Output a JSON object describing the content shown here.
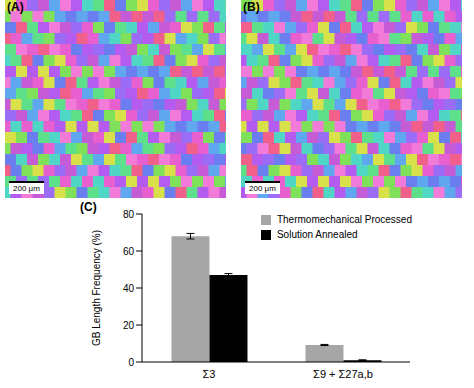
{
  "panels": [
    {
      "label": "(A)",
      "scale_bar": "200 μm"
    },
    {
      "label": "(B)",
      "scale_bar": "200 μm"
    }
  ],
  "chart_data": {
    "type": "bar",
    "panel_label": "(C)",
    "y_label": "GB Length Frequency (%)",
    "categories": [
      "Σ3",
      "Σ9 + Σ27a,b"
    ],
    "series": [
      {
        "name": "Thermomechanical Processed",
        "color": "#a6a6a6",
        "values": [
          68,
          9.2
        ],
        "errors": [
          1.5,
          0.3
        ]
      },
      {
        "name": "Solution Annealed",
        "color": "#000000",
        "values": [
          47,
          1
        ],
        "errors": [
          0.8,
          0.2
        ]
      }
    ],
    "ylim": [
      0,
      80
    ],
    "yticks": [
      0,
      20,
      40,
      60,
      80
    ],
    "grid": false,
    "legend": "upper right"
  }
}
